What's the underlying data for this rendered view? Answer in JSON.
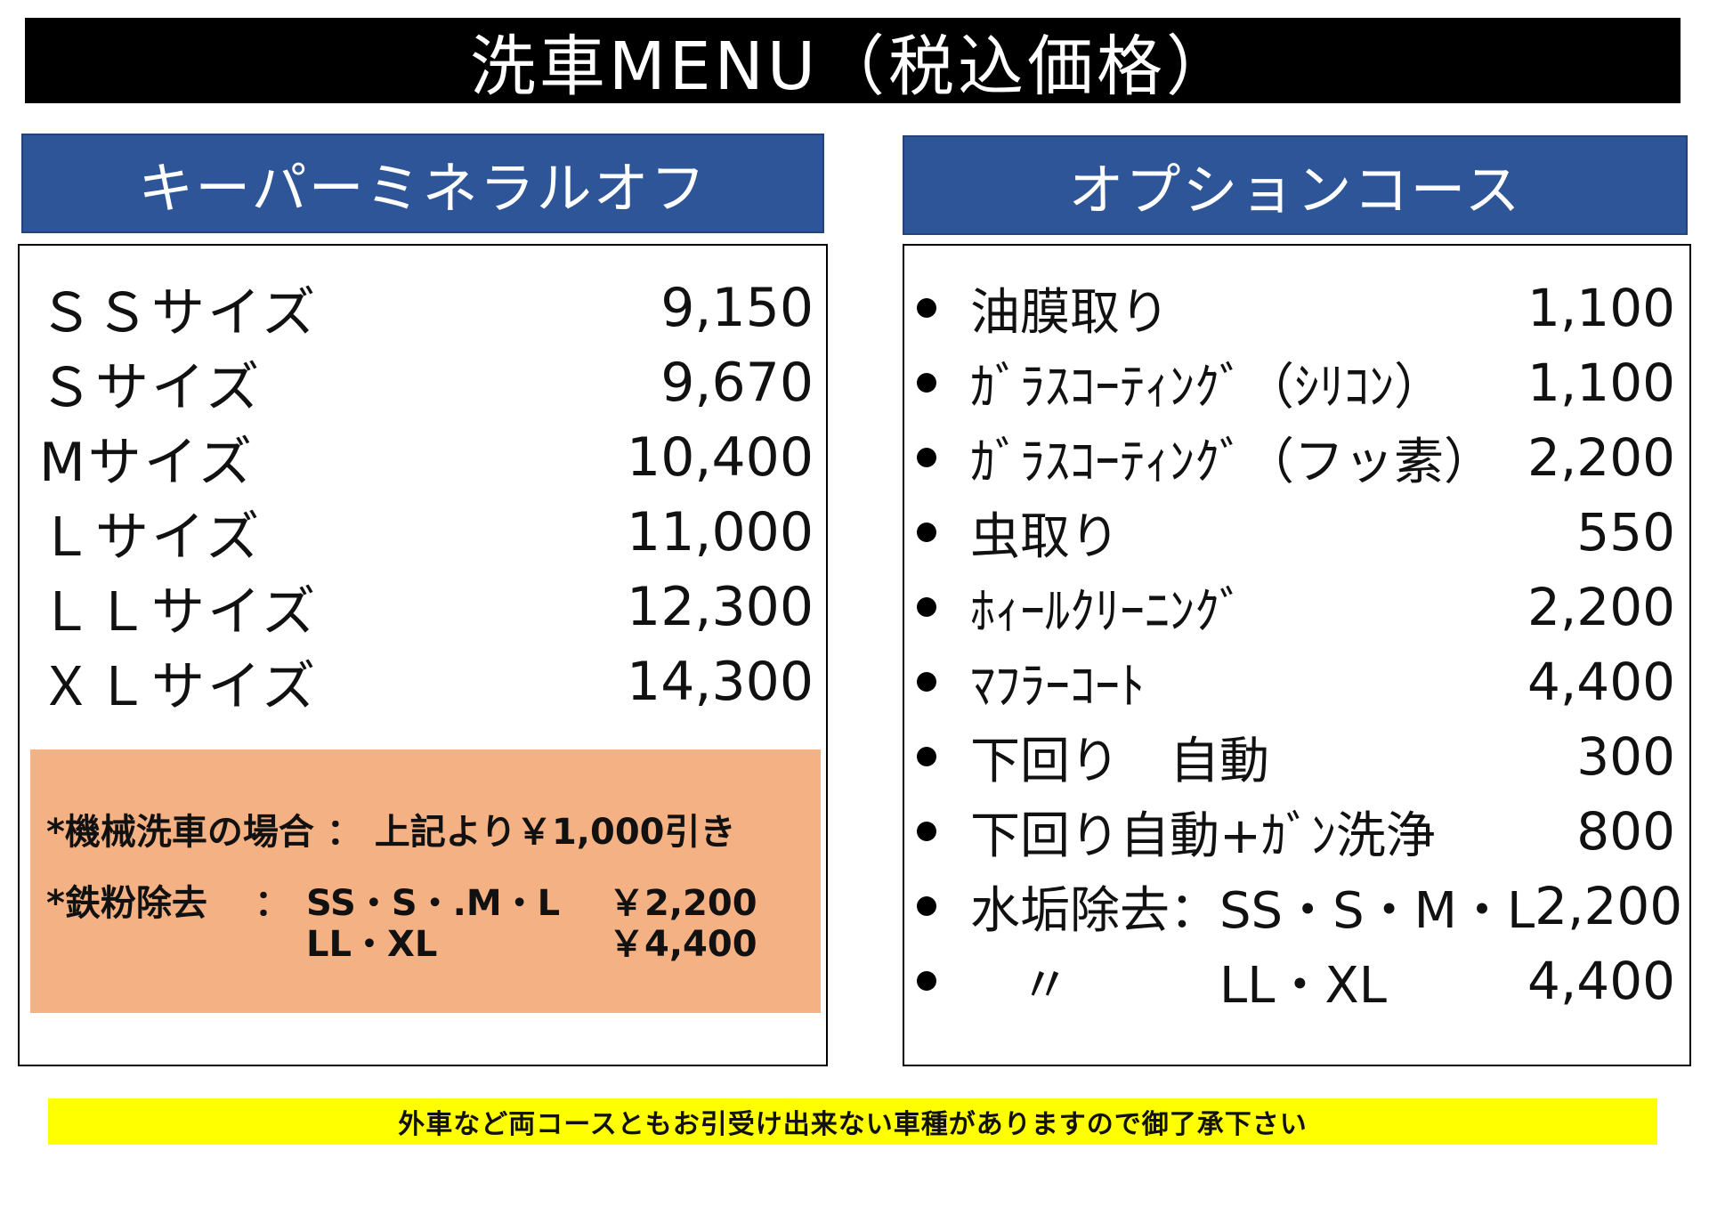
{
  "title": "洗車MENU（税込価格）",
  "left_panel": {
    "header": "キーパーミネラルオフ",
    "items": [
      {
        "name": "ＳＳサイズ",
        "price": "9,150"
      },
      {
        "name": "Ｓサイズ",
        "price": "9,670"
      },
      {
        "name": "Mサイズ",
        "price": "10,400"
      },
      {
        "name": "Ｌサイズ",
        "price": "11,000"
      },
      {
        "name": "ＬＬサイズ",
        "price": "12,300"
      },
      {
        "name": "ＸＬサイズ",
        "price": "14,300"
      }
    ],
    "notes": {
      "machine_wash": "*機械洗車の場合 ： 上記より￥1,000引き",
      "iron_label": "*鉄粉除去",
      "iron_colon": "：",
      "iron_small_sizes": "SS・S・.M・L",
      "iron_small_price": "￥2,200",
      "iron_large_sizes": "LL・XL",
      "iron_large_price": "￥4,400"
    }
  },
  "right_panel": {
    "header": "オプションコース",
    "items": [
      {
        "name": "油膜取り",
        "price": "1,100"
      },
      {
        "name": "ｶﾞﾗｽｺｰﾃｨﾝｸﾞ（ｼﾘｺﾝ）",
        "price": "1,100"
      },
      {
        "name": "ｶﾞﾗｽｺｰﾃｨﾝｸﾞ（フッ素）",
        "price": "2,200"
      },
      {
        "name": "虫取り",
        "price": "550"
      },
      {
        "name": "ﾎｨｰﾙｸﾘｰﾆﾝｸﾞ",
        "price": "2,200"
      },
      {
        "name": "ﾏﾌﾗｰｺｰﾄ",
        "price": "4,400"
      },
      {
        "name": "下回り　自動",
        "price": "300"
      },
      {
        "name": "下回り自動+ｶﾞﾝ洗浄",
        "price": "800"
      },
      {
        "name": "水垢除去：SS・S・M・L",
        "price": "2,200"
      },
      {
        "name": "　〃　　　LL・XL",
        "price": "4,400"
      }
    ]
  },
  "notice": "外車など両コースともお引受け出来ない車種がありますので御了承下さい"
}
